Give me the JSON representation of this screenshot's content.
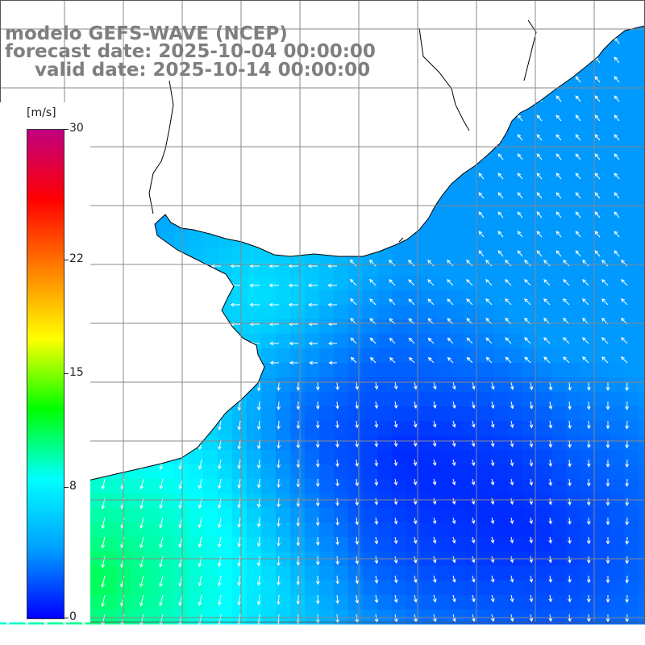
{
  "title": {
    "model": "modelo GEFS-WAVE (NCEP)",
    "forecast": "forecast date: 2025-10-04 00:00:00",
    "valid": "valid date: 2025-10-14 00:00:00"
  },
  "colorbar": {
    "unit": "[m/s]",
    "ticks": [
      {
        "label": "30",
        "value": 30
      },
      {
        "label": "22",
        "value": 22
      },
      {
        "label": "15",
        "value": 15
      },
      {
        "label": "8",
        "value": 8
      },
      {
        "label": "0",
        "value": 0
      }
    ],
    "range": [
      0,
      30
    ],
    "colors": [
      "#0000ff",
      "#00a0ff",
      "#00ffff",
      "#00ff00",
      "#ffff00",
      "#ff8000",
      "#ff0000",
      "#c00080"
    ]
  },
  "map": {
    "land_color": "#ffffff",
    "grid_color": "#888888",
    "coastline_color": "#000000",
    "arrow_color": "#ffffff",
    "grid": true
  }
}
